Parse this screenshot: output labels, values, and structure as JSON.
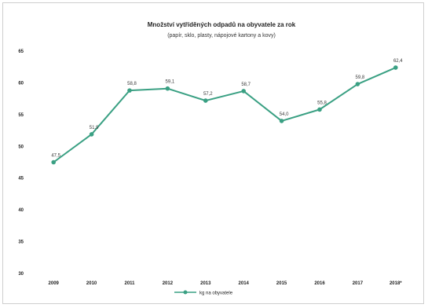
{
  "chart_data": {
    "type": "line",
    "title": "Množství vytříděných odpadů na obyvatele za rok",
    "subtitle": "(papír, sklo, plasty, nápojové kartony a kovy)",
    "categories": [
      "2009",
      "2010",
      "2011",
      "2012",
      "2013",
      "2014",
      "2015",
      "2016",
      "2017",
      "2018*"
    ],
    "series": [
      {
        "name": "kg na obyvatele",
        "values": [
          47.5,
          51.9,
          58.8,
          59.1,
          57.2,
          58.7,
          54.0,
          55.8,
          59.8,
          62.4
        ],
        "labels": [
          "47,5",
          "51,9",
          "58,8",
          "59,1",
          "57,2",
          "58,7",
          "54,0",
          "55,8",
          "59,8",
          "62,4"
        ],
        "color": "#3aa083"
      }
    ],
    "ylim": [
      30,
      65
    ],
    "yticks": [
      30,
      35,
      40,
      45,
      50,
      55,
      60,
      65
    ],
    "grid": false,
    "legend": "bottom-center"
  }
}
